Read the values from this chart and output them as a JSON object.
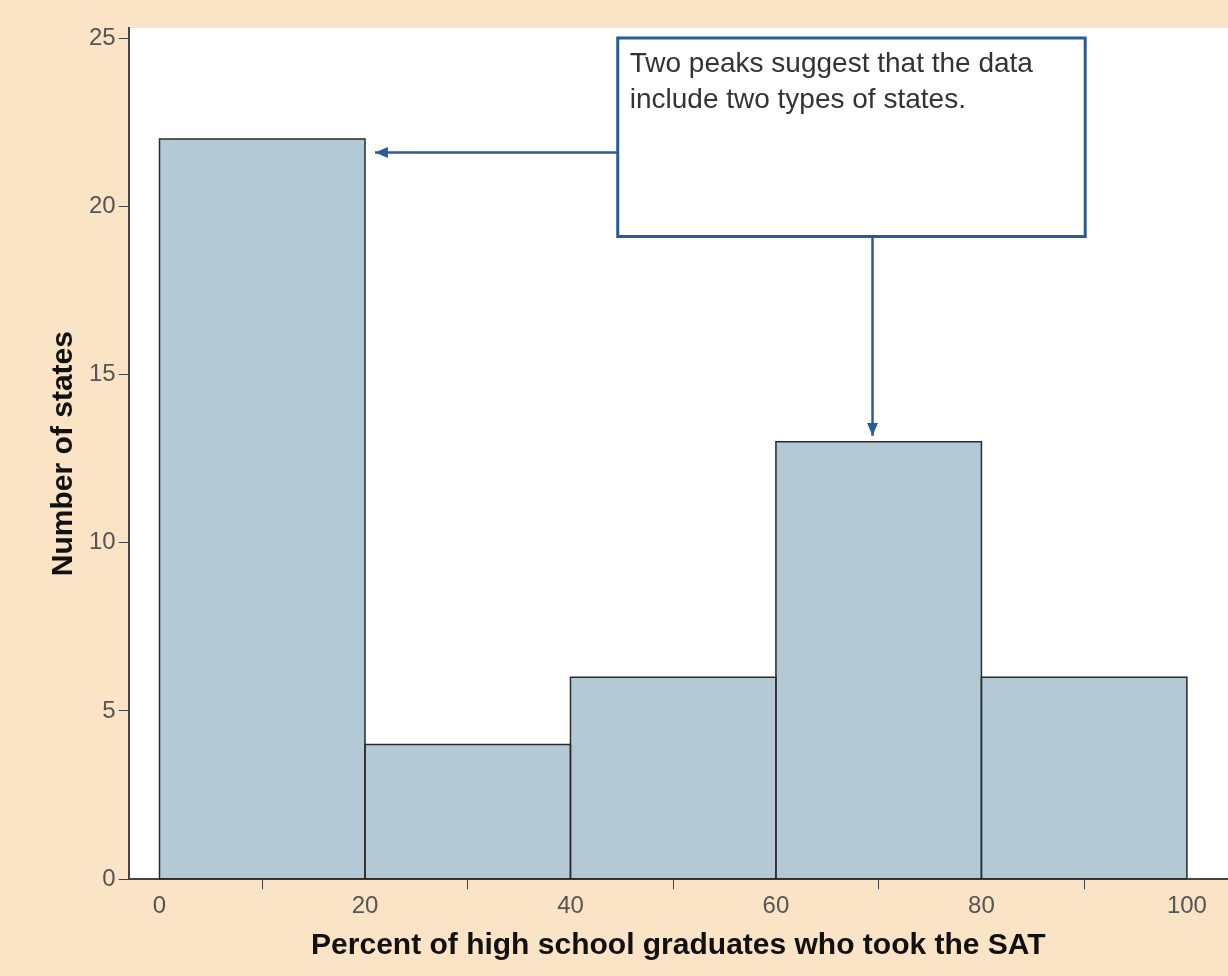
{
  "chart_data": {
    "type": "histogram",
    "xlabel": "Percent of high school graduates who took the SAT",
    "ylabel": "Number of states",
    "bins": [
      0,
      20,
      40,
      60,
      80,
      100
    ],
    "values": [
      22,
      4,
      6,
      13,
      6
    ],
    "color": "#b3cad6",
    "xlim": [
      -3,
      104
    ],
    "xticks": [
      0,
      20,
      40,
      60,
      80,
      100
    ],
    "ylim": [
      0,
      25.3
    ],
    "yticks": [
      0,
      5,
      10,
      15,
      20,
      25
    ],
    "grid": false,
    "legend": false,
    "annotations": [
      "Two peaks suggest that the data include two types of states."
    ]
  }
}
